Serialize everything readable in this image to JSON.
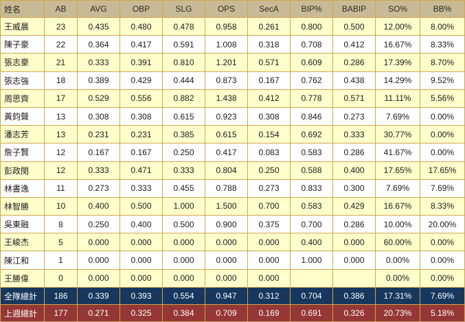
{
  "chart_data": {
    "type": "table",
    "title": "Batting statistics table",
    "columns": [
      "姓名",
      "AB",
      "AVG",
      "OBP",
      "SLG",
      "OPS",
      "SecA",
      "BIP%",
      "BABIP",
      "SO%",
      "BB%"
    ],
    "rows": [
      [
        "王威晨",
        "23",
        "0.435",
        "0.480",
        "0.478",
        "0.958",
        "0.261",
        "0.800",
        "0.500",
        "12.00%",
        "8.00%"
      ],
      [
        "陳子豪",
        "22",
        "0.364",
        "0.417",
        "0.591",
        "1.008",
        "0.318",
        "0.708",
        "0.412",
        "16.67%",
        "8.33%"
      ],
      [
        "張志豪",
        "21",
        "0.333",
        "0.391",
        "0.810",
        "1.201",
        "0.571",
        "0.609",
        "0.286",
        "17.39%",
        "8.70%"
      ],
      [
        "張志強",
        "18",
        "0.389",
        "0.429",
        "0.444",
        "0.873",
        "0.167",
        "0.762",
        "0.438",
        "14.29%",
        "9.52%"
      ],
      [
        "周思齊",
        "17",
        "0.529",
        "0.556",
        "0.882",
        "1.438",
        "0.412",
        "0.778",
        "0.571",
        "11.11%",
        "5.56%"
      ],
      [
        "黃鈞聲",
        "13",
        "0.308",
        "0.308",
        "0.615",
        "0.923",
        "0.308",
        "0.846",
        "0.273",
        "7.69%",
        "0.00%"
      ],
      [
        "潘志芳",
        "13",
        "0.231",
        "0.231",
        "0.385",
        "0.615",
        "0.154",
        "0.692",
        "0.333",
        "30.77%",
        "0.00%"
      ],
      [
        "詹子賢",
        "12",
        "0.167",
        "0.167",
        "0.250",
        "0.417",
        "0.083",
        "0.583",
        "0.286",
        "41.67%",
        "0.00%"
      ],
      [
        "彭政閔",
        "12",
        "0.333",
        "0.471",
        "0.333",
        "0.804",
        "0.250",
        "0.588",
        "0.400",
        "17.65%",
        "17.65%"
      ],
      [
        "林書逸",
        "11",
        "0.273",
        "0.333",
        "0.455",
        "0.788",
        "0.273",
        "0.833",
        "0.300",
        "7.69%",
        "7.69%"
      ],
      [
        "林智勝",
        "10",
        "0.400",
        "0.500",
        "1.000",
        "1.500",
        "0.700",
        "0.583",
        "0.429",
        "16.67%",
        "8.33%"
      ],
      [
        "吳東融",
        "8",
        "0.250",
        "0.400",
        "0.500",
        "0.900",
        "0.375",
        "0.700",
        "0.286",
        "10.00%",
        "20.00%"
      ],
      [
        "王峻杰",
        "5",
        "0.000",
        "0.000",
        "0.000",
        "0.000",
        "0.000",
        "0.400",
        "0.000",
        "60.00%",
        "0.00%"
      ],
      [
        "陳江和",
        "1",
        "0.000",
        "0.000",
        "0.000",
        "0.000",
        "0.000",
        "1.000",
        "0.000",
        "0.00%",
        "0.00%"
      ],
      [
        "王勝偉",
        "0",
        "0.000",
        "0.000",
        "0.000",
        "0.000",
        "0.000",
        "",
        "",
        "0.00%",
        "0.00%"
      ]
    ],
    "totals": [
      {
        "label": "全隊總計",
        "values": [
          "186",
          "0.339",
          "0.393",
          "0.554",
          "0.947",
          "0.312",
          "0.704",
          "0.386",
          "17.31%",
          "7.69%"
        ]
      },
      {
        "label": "上週總計",
        "values": [
          "177",
          "0.271",
          "0.325",
          "0.384",
          "0.709",
          "0.169",
          "0.691",
          "0.326",
          "20.73%",
          "5.18%"
        ]
      }
    ],
    "layout": {
      "grid": true,
      "striped_rows": true
    }
  },
  "colors": {
    "header_bg": "#c8ba94",
    "stripe_bg": "#ffffcc",
    "grid_line": "#cfa64e",
    "team_total_bg": "#17375d",
    "lastweek_total_bg": "#953735",
    "total_text": "#ffffff"
  }
}
